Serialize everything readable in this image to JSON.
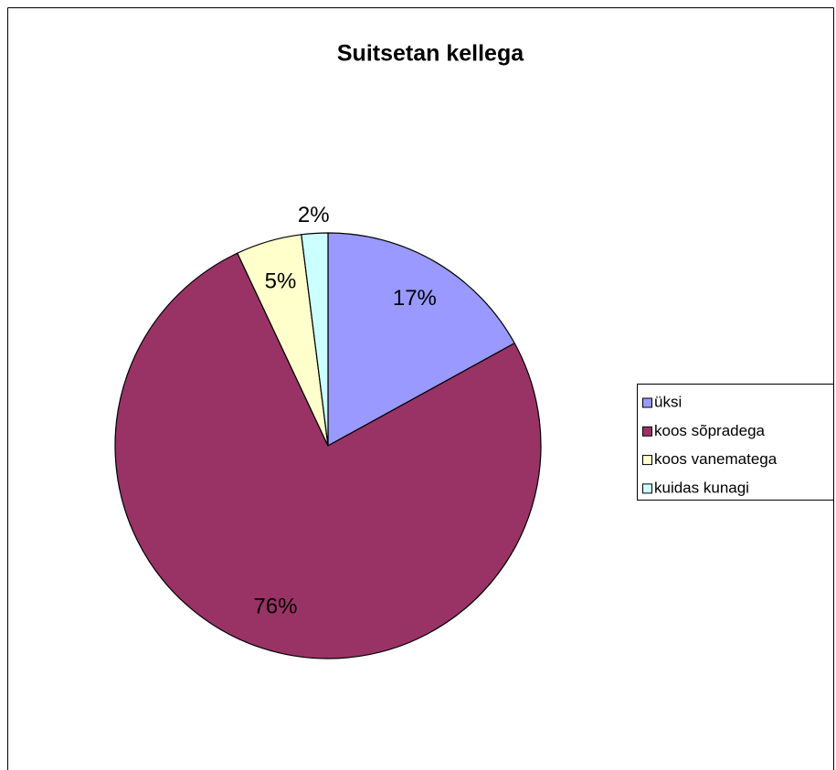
{
  "chart_data": {
    "type": "pie",
    "title": "Suitsetan kellega",
    "categories": [
      "üksi",
      "koos sõpradega",
      "koos vanematega",
      "kuidas kunagi"
    ],
    "values": [
      17,
      76,
      5,
      2
    ],
    "value_labels": [
      "17%",
      "76%",
      "5%",
      "2%"
    ],
    "colors": [
      "#9999ff",
      "#993366",
      "#ffffcc",
      "#ccffff"
    ],
    "legend": "right"
  }
}
